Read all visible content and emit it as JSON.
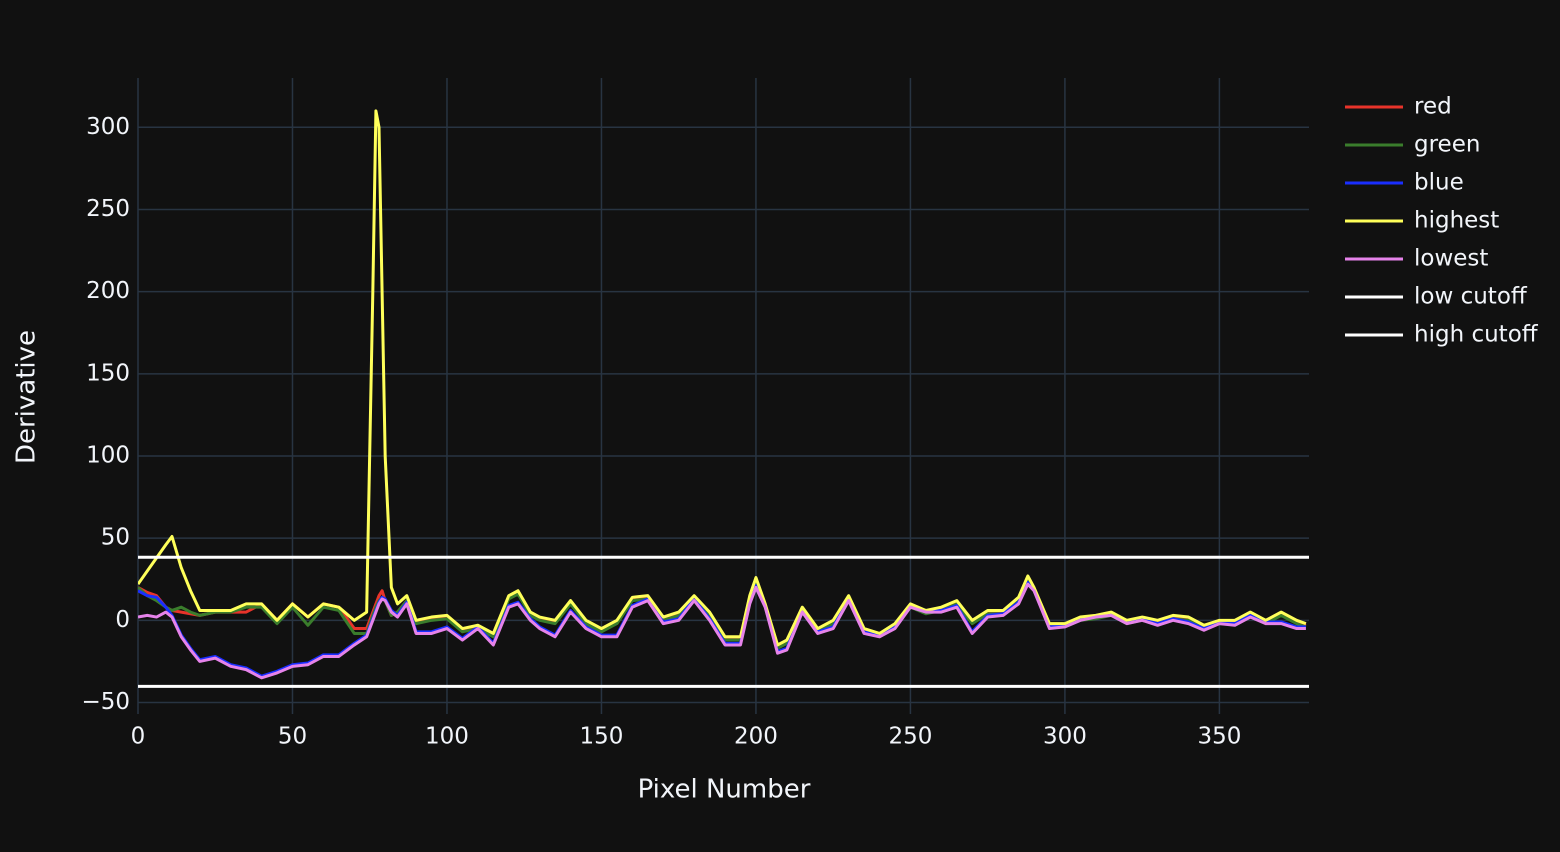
{
  "chart_data": {
    "type": "line",
    "xlabel": "Pixel Number",
    "ylabel": "Derivative",
    "x": [
      0,
      3,
      6,
      9,
      11,
      14,
      17,
      20,
      25,
      30,
      35,
      40,
      45,
      50,
      55,
      60,
      65,
      70,
      74,
      76,
      77,
      78,
      79,
      80,
      82,
      84,
      87,
      90,
      95,
      100,
      105,
      110,
      115,
      120,
      123,
      127,
      130,
      135,
      140,
      145,
      150,
      155,
      160,
      165,
      170,
      175,
      180,
      185,
      190,
      195,
      198,
      200,
      203,
      207,
      210,
      215,
      220,
      225,
      230,
      235,
      240,
      245,
      250,
      255,
      260,
      265,
      270,
      275,
      280,
      285,
      288,
      290,
      295,
      300,
      305,
      310,
      315,
      320,
      325,
      330,
      335,
      340,
      345,
      350,
      355,
      360,
      365,
      370,
      375,
      378
    ],
    "series": [
      {
        "name": "red",
        "color": "#e8332a",
        "values": [
          20,
          17,
          15,
          8,
          6,
          5,
          4,
          3,
          5,
          5,
          5,
          10,
          0,
          10,
          2,
          10,
          8,
          -5,
          -5,
          5,
          10,
          15,
          18,
          12,
          3,
          5,
          12,
          -1,
          1,
          2,
          -6,
          -4,
          -9,
          14,
          17,
          4,
          1,
          -1,
          11,
          -1,
          -6,
          -1,
          13,
          14,
          1,
          4,
          14,
          4,
          -11,
          -11,
          14,
          25,
          9,
          -16,
          -13,
          7,
          -6,
          -1,
          14,
          -6,
          -9,
          -3,
          9,
          5,
          7,
          11,
          -1,
          5,
          5,
          13,
          26,
          19,
          -3,
          -3,
          1,
          2,
          4,
          -1,
          1,
          -1,
          2,
          1,
          -4,
          -1,
          -1,
          4,
          -1,
          4,
          -1,
          -3
        ]
      },
      {
        "name": "green",
        "color": "#3a7d2c",
        "values": [
          20,
          15,
          12,
          8,
          6,
          8,
          5,
          3,
          5,
          5,
          8,
          8,
          -2,
          8,
          -3,
          8,
          6,
          -8,
          -8,
          3,
          8,
          12,
          14,
          12,
          3,
          5,
          12,
          -2,
          0,
          1,
          -7,
          -5,
          -10,
          13,
          16,
          3,
          0,
          -2,
          10,
          -2,
          -7,
          -2,
          12,
          13,
          0,
          3,
          13,
          3,
          -12,
          -12,
          13,
          24,
          8,
          -17,
          -14,
          6,
          -7,
          -2,
          13,
          -7,
          -10,
          -4,
          8,
          4,
          6,
          10,
          -2,
          4,
          4,
          12,
          25,
          18,
          -4,
          -4,
          0,
          1,
          3,
          -2,
          0,
          -2,
          1,
          0,
          -5,
          -2,
          -2,
          3,
          -2,
          3,
          -2,
          -4
        ]
      },
      {
        "name": "blue",
        "color": "#1a2eff",
        "values": [
          18,
          15,
          14,
          8,
          3,
          -9,
          -17,
          -24,
          -22,
          -27,
          -29,
          -34,
          -31,
          -27,
          -26,
          -21,
          -21,
          -14,
          -9,
          1,
          6,
          11,
          14,
          13,
          6,
          3,
          11,
          -7,
          -7,
          -4,
          -11,
          -4,
          -14,
          9,
          11,
          1,
          -4,
          -9,
          6,
          -4,
          -9,
          -9,
          9,
          13,
          -1,
          1,
          13,
          1,
          -14,
          -14,
          11,
          21,
          9,
          -19,
          -17,
          6,
          -7,
          -4,
          13,
          -7,
          -9,
          -4,
          9,
          6,
          6,
          9,
          -7,
          3,
          4,
          11,
          23,
          19,
          -4,
          -3,
          1,
          3,
          4,
          -1,
          1,
          -2,
          1,
          -1,
          -5,
          -1,
          -2,
          3,
          -1,
          -1,
          -4,
          -4
        ]
      },
      {
        "name": "highest",
        "color": "#ffff5a",
        "values": [
          22,
          30,
          38,
          46,
          51,
          32,
          18,
          6,
          6,
          6,
          10,
          10,
          0,
          10,
          2,
          10,
          8,
          0,
          5,
          200,
          310,
          300,
          200,
          100,
          20,
          10,
          15,
          0,
          2,
          3,
          -5,
          -3,
          -8,
          15,
          18,
          5,
          2,
          0,
          12,
          0,
          -5,
          0,
          14,
          15,
          2,
          5,
          15,
          5,
          -10,
          -10,
          15,
          26,
          10,
          -15,
          -12,
          8,
          -5,
          0,
          15,
          -5,
          -8,
          -2,
          10,
          6,
          8,
          12,
          0,
          6,
          6,
          14,
          27,
          20,
          -2,
          -2,
          2,
          3,
          5,
          0,
          2,
          0,
          3,
          2,
          -3,
          0,
          0,
          5,
          0,
          5,
          0,
          -2
        ]
      },
      {
        "name": "lowest",
        "color": "#e683ea",
        "values": [
          2,
          3,
          2,
          5,
          2,
          -10,
          -18,
          -25,
          -23,
          -28,
          -30,
          -35,
          -32,
          -28,
          -27,
          -22,
          -22,
          -15,
          -10,
          0,
          5,
          10,
          13,
          12,
          5,
          2,
          10,
          -8,
          -8,
          -5,
          -12,
          -5,
          -15,
          8,
          10,
          0,
          -5,
          -10,
          5,
          -5,
          -10,
          -10,
          8,
          12,
          -2,
          0,
          12,
          0,
          -15,
          -15,
          10,
          20,
          8,
          -20,
          -18,
          5,
          -8,
          -5,
          12,
          -8,
          -10,
          -5,
          8,
          5,
          5,
          8,
          -8,
          2,
          3,
          10,
          22,
          18,
          -5,
          -4,
          0,
          2,
          3,
          -2,
          0,
          -3,
          0,
          -2,
          -6,
          -2,
          -3,
          2,
          -2,
          -2,
          -5,
          -5
        ]
      },
      {
        "name": "low cutoff",
        "color": "#ffffff",
        "x": [
          0,
          379
        ],
        "values": [
          38.4,
          38.4
        ]
      },
      {
        "name": "high cutoff",
        "color": "#ffffff",
        "x": [
          0,
          379
        ],
        "values": [
          -40.2,
          -40.2
        ]
      }
    ],
    "xlim": [
      0,
      379
    ],
    "ylim": [
      -57,
      330
    ],
    "xticks": [
      0,
      50,
      100,
      150,
      200,
      250,
      300,
      350
    ],
    "yticks": [
      {
        "value": -50,
        "label": "−50"
      },
      0,
      50,
      100,
      150,
      200,
      250,
      300
    ],
    "grid": true,
    "legend": "right"
  }
}
